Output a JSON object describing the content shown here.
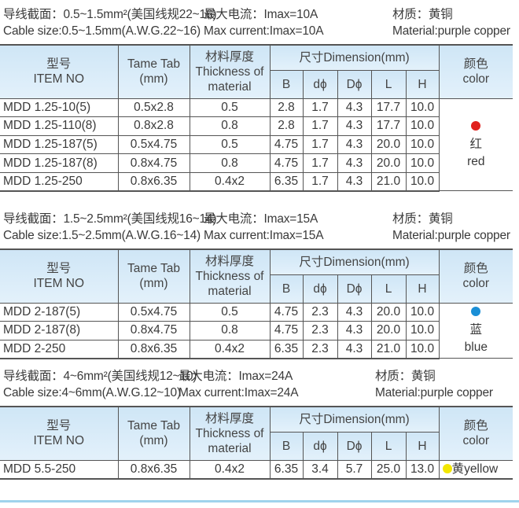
{
  "headers": {
    "item_cn": "型号",
    "item_en": "ITEM NO",
    "tab_1": "Tame Tab",
    "tab_2": "(mm)",
    "thick_cn": "材料厚度",
    "thick_en1": "Thickness of",
    "thick_en2": "material",
    "dimension": "尺寸Dimension(mm)",
    "dims": [
      "B",
      "dϕ",
      "Dϕ",
      "L",
      "H"
    ],
    "color_cn": "颜色",
    "color_en": "color"
  },
  "sections": [
    {
      "cn": {
        "cable": "导线截面：0.5~1.5mm²(美国线规22~16)",
        "current": "最大电流：Imax=10A",
        "material": "材质：黄铜"
      },
      "en": {
        "cable": "Cable size:0.5~1.5mm(A.W.G.22~16)",
        "current": "Max current:Imax=10A",
        "material": "Material:purple copper"
      },
      "color": {
        "hex": "#e0201c",
        "cn": "红",
        "en": "red"
      },
      "rows": [
        [
          "MDD  1.25-10(5)",
          "0.5x2.8",
          "0.5",
          "2.8",
          "1.7",
          "4.3",
          "17.7",
          "10.0"
        ],
        [
          "MDD  1.25-110(8)",
          "0.8x2.8",
          "0.8",
          "2.8",
          "1.7",
          "4.3",
          "17.7",
          "10.0"
        ],
        [
          "MDD  1.25-187(5)",
          "0.5x4.75",
          "0.5",
          "4.75",
          "1.7",
          "4.3",
          "20.0",
          "10.0"
        ],
        [
          "MDD  1.25-187(8)",
          "0.8x4.75",
          "0.8",
          "4.75",
          "1.7",
          "4.3",
          "20.0",
          "10.0"
        ],
        [
          "MDD  1.25-250",
          "0.8x6.35",
          "0.4x2",
          "6.35",
          "1.7",
          "4.3",
          "21.0",
          "10.0"
        ]
      ]
    },
    {
      "cn": {
        "cable": "导线截面：1.5~2.5mm²(美国线规16~14)",
        "current": "最大电流：Imax=15A",
        "material": "材质：黄铜"
      },
      "en": {
        "cable": "Cable size:1.5~2.5mm(A.W.G.16~14)",
        "current": "Max current:Imax=15A",
        "material": "Material:purple copper"
      },
      "color": {
        "hex": "#1a8fd6",
        "cn": "蓝",
        "en": "blue"
      },
      "rows": [
        [
          "MDD  2-187(5)",
          "0.5x4.75",
          "0.5",
          "4.75",
          "2.3",
          "4.3",
          "20.0",
          "10.0"
        ],
        [
          "MDD  2-187(8)",
          "0.8x4.75",
          "0.8",
          "4.75",
          "2.3",
          "4.3",
          "20.0",
          "10.0"
        ],
        [
          "MDD  2-250",
          "0.8x6.35",
          "0.4x2",
          "6.35",
          "2.3",
          "4.3",
          "21.0",
          "10.0"
        ]
      ]
    },
    {
      "cn": {
        "cable": "导线截面：4~6mm²(美国线规12~10)",
        "current": "最大电流：Imax=24A",
        "material": "材质：黄铜"
      },
      "en": {
        "cable": "Cable size:4~6mm(A.W.G.12~10)",
        "current": "Max current:Imax=24A",
        "material": "Material:purple copper"
      },
      "color": {
        "hex": "#f2e600",
        "cn": "黄",
        "en": "yellow"
      },
      "rows": [
        [
          "MDD  5.5-250",
          "0.8x6.35",
          "0.4x2",
          "6.35",
          "3.4",
          "5.7",
          "25.0",
          "13.0"
        ]
      ]
    }
  ]
}
